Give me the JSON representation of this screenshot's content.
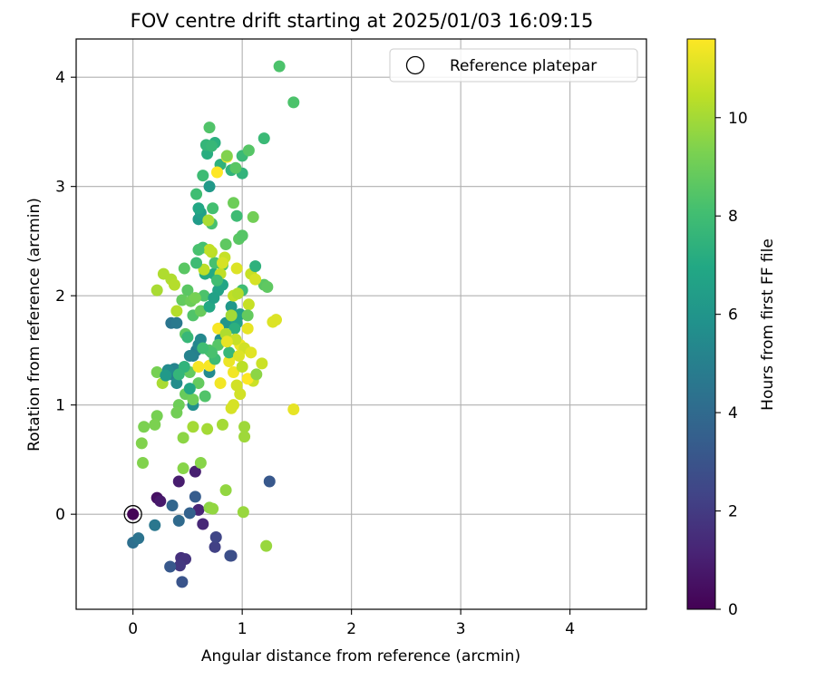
{
  "chart_data": {
    "type": "scatter",
    "title": "FOV centre drift starting at 2025/01/03 16:09:15",
    "xlabel": "Angular distance from reference (arcmin)",
    "ylabel": "Rotation from reference (arcmin)",
    "xlim": [
      -0.52,
      4.7
    ],
    "ylim": [
      -0.87,
      4.35
    ],
    "xticks": [
      0,
      1,
      2,
      3,
      4
    ],
    "yticks": [
      0,
      1,
      2,
      3,
      4
    ],
    "grid": true,
    "legend": {
      "label": "Reference platepar",
      "placement": "top-right"
    },
    "reference_point": {
      "x": 0,
      "y": 0
    },
    "colorbar": {
      "label": "Hours from first FF file",
      "colormap": "viridis",
      "range": [
        0,
        11.6
      ],
      "ticks": [
        0,
        2,
        4,
        6,
        8,
        10
      ]
    },
    "points": [
      {
        "x": 0.0,
        "y": 0.0,
        "c": 0.1
      },
      {
        "x": 0.22,
        "y": 0.15,
        "c": 0.5
      },
      {
        "x": 0.25,
        "y": 0.12,
        "c": 0.8
      },
      {
        "x": 0.42,
        "y": 0.3,
        "c": 0.9
      },
      {
        "x": 0.57,
        "y": 0.39,
        "c": 1.0
      },
      {
        "x": 0.6,
        "y": 0.04,
        "c": 1.2
      },
      {
        "x": 0.64,
        "y": -0.09,
        "c": 1.3
      },
      {
        "x": 0.44,
        "y": -0.4,
        "c": 1.6
      },
      {
        "x": 0.48,
        "y": -0.41,
        "c": 1.7
      },
      {
        "x": 0.43,
        "y": -0.47,
        "c": 1.9
      },
      {
        "x": 0.75,
        "y": -0.3,
        "c": 2.2
      },
      {
        "x": 0.76,
        "y": -0.21,
        "c": 2.4
      },
      {
        "x": 0.9,
        "y": -0.38,
        "c": 2.6
      },
      {
        "x": 0.89,
        "y": -0.38,
        "c": 2.8
      },
      {
        "x": 0.45,
        "y": -0.62,
        "c": 3.0
      },
      {
        "x": 0.34,
        "y": -0.48,
        "c": 3.2
      },
      {
        "x": 1.25,
        "y": 0.3,
        "c": 3.2
      },
      {
        "x": 0.57,
        "y": 0.16,
        "c": 3.4
      },
      {
        "x": 0.52,
        "y": 0.01,
        "c": 3.6
      },
      {
        "x": 0.36,
        "y": 0.08,
        "c": 3.8
      },
      {
        "x": 0.42,
        "y": -0.06,
        "c": 4.0
      },
      {
        "x": 0.0,
        "y": -0.26,
        "c": 4.2
      },
      {
        "x": 0.05,
        "y": -0.22,
        "c": 4.4
      },
      {
        "x": 0.2,
        "y": -0.1,
        "c": 4.6
      },
      {
        "x": 0.35,
        "y": 1.75,
        "c": 4.5
      },
      {
        "x": 0.4,
        "y": 1.75,
        "c": 4.7
      },
      {
        "x": 0.58,
        "y": 1.5,
        "c": 4.8
      },
      {
        "x": 0.55,
        "y": 1.45,
        "c": 5.0
      },
      {
        "x": 0.35,
        "y": 1.28,
        "c": 5.0
      },
      {
        "x": 0.38,
        "y": 1.33,
        "c": 5.2
      },
      {
        "x": 0.6,
        "y": 1.55,
        "c": 5.3
      },
      {
        "x": 0.62,
        "y": 1.6,
        "c": 5.4
      },
      {
        "x": 0.7,
        "y": 1.3,
        "c": 5.5
      },
      {
        "x": 0.4,
        "y": 1.2,
        "c": 5.6
      },
      {
        "x": 0.55,
        "y": 1.0,
        "c": 5.7
      },
      {
        "x": 0.8,
        "y": 1.6,
        "c": 5.8
      },
      {
        "x": 0.85,
        "y": 1.75,
        "c": 6.0
      },
      {
        "x": 0.9,
        "y": 1.9,
        "c": 6.1
      },
      {
        "x": 0.7,
        "y": 3.0,
        "c": 6.2
      },
      {
        "x": 0.6,
        "y": 2.7,
        "c": 6.3
      },
      {
        "x": 0.62,
        "y": 2.76,
        "c": 6.5
      },
      {
        "x": 0.98,
        "y": 1.83,
        "c": 6.5
      },
      {
        "x": 0.95,
        "y": 1.75,
        "c": 6.6
      },
      {
        "x": 0.78,
        "y": 2.05,
        "c": 6.7
      },
      {
        "x": 0.82,
        "y": 2.1,
        "c": 6.8
      },
      {
        "x": 0.6,
        "y": 2.8,
        "c": 6.9
      },
      {
        "x": 0.66,
        "y": 2.2,
        "c": 7.0
      },
      {
        "x": 0.74,
        "y": 2.2,
        "c": 7.0
      },
      {
        "x": 0.68,
        "y": 3.3,
        "c": 7.2
      },
      {
        "x": 0.75,
        "y": 3.4,
        "c": 7.3
      },
      {
        "x": 0.8,
        "y": 3.2,
        "c": 7.4
      },
      {
        "x": 0.9,
        "y": 3.15,
        "c": 7.5
      },
      {
        "x": 1.0,
        "y": 3.12,
        "c": 7.5
      },
      {
        "x": 0.67,
        "y": 3.38,
        "c": 7.6
      },
      {
        "x": 0.72,
        "y": 3.37,
        "c": 7.7
      },
      {
        "x": 1.2,
        "y": 3.44,
        "c": 7.8
      },
      {
        "x": 1.0,
        "y": 3.28,
        "c": 7.8
      },
      {
        "x": 0.64,
        "y": 3.1,
        "c": 7.9
      },
      {
        "x": 0.58,
        "y": 2.93,
        "c": 8.0
      },
      {
        "x": 0.73,
        "y": 2.8,
        "c": 8.1
      },
      {
        "x": 0.64,
        "y": 2.44,
        "c": 8.1
      },
      {
        "x": 0.72,
        "y": 2.66,
        "c": 8.2
      },
      {
        "x": 0.75,
        "y": 2.3,
        "c": 8.2
      },
      {
        "x": 0.82,
        "y": 2.28,
        "c": 8.3
      },
      {
        "x": 0.65,
        "y": 2.0,
        "c": 8.3
      },
      {
        "x": 0.55,
        "y": 1.82,
        "c": 8.4
      },
      {
        "x": 0.7,
        "y": 1.5,
        "c": 8.4
      },
      {
        "x": 0.78,
        "y": 1.55,
        "c": 8.5
      },
      {
        "x": 0.5,
        "y": 2.05,
        "c": 8.6
      },
      {
        "x": 0.47,
        "y": 2.25,
        "c": 8.6
      },
      {
        "x": 0.48,
        "y": 1.65,
        "c": 8.7
      },
      {
        "x": 0.52,
        "y": 1.3,
        "c": 8.8
      },
      {
        "x": 0.6,
        "y": 1.2,
        "c": 8.8
      },
      {
        "x": 0.48,
        "y": 1.1,
        "c": 8.9
      },
      {
        "x": 0.55,
        "y": 1.05,
        "c": 9.0
      },
      {
        "x": 0.42,
        "y": 1.0,
        "c": 9.0
      },
      {
        "x": 0.4,
        "y": 0.93,
        "c": 9.1
      },
      {
        "x": 0.22,
        "y": 0.9,
        "c": 9.2
      },
      {
        "x": 0.22,
        "y": 1.3,
        "c": 9.2
      },
      {
        "x": 0.2,
        "y": 0.82,
        "c": 9.3
      },
      {
        "x": 0.1,
        "y": 0.8,
        "c": 9.3
      },
      {
        "x": 0.08,
        "y": 0.65,
        "c": 9.4
      },
      {
        "x": 0.09,
        "y": 0.47,
        "c": 9.4
      },
      {
        "x": 0.62,
        "y": 0.47,
        "c": 9.5
      },
      {
        "x": 0.46,
        "y": 0.42,
        "c": 9.5
      },
      {
        "x": 0.46,
        "y": 0.7,
        "c": 9.6
      },
      {
        "x": 0.7,
        "y": 0.06,
        "c": 9.6
      },
      {
        "x": 0.73,
        "y": 0.05,
        "c": 9.7
      },
      {
        "x": 0.85,
        "y": 0.22,
        "c": 9.7
      },
      {
        "x": 1.01,
        "y": 0.02,
        "c": 9.8
      },
      {
        "x": 1.22,
        "y": -0.29,
        "c": 9.8
      },
      {
        "x": 1.02,
        "y": 0.8,
        "c": 9.9
      },
      {
        "x": 1.02,
        "y": 0.71,
        "c": 9.9
      },
      {
        "x": 0.82,
        "y": 0.82,
        "c": 10.0
      },
      {
        "x": 0.68,
        "y": 0.78,
        "c": 10.0
      },
      {
        "x": 0.55,
        "y": 0.8,
        "c": 10.0
      },
      {
        "x": 0.27,
        "y": 1.2,
        "c": 10.1
      },
      {
        "x": 0.22,
        "y": 2.05,
        "c": 10.1
      },
      {
        "x": 0.28,
        "y": 2.2,
        "c": 10.2
      },
      {
        "x": 0.35,
        "y": 2.15,
        "c": 10.2
      },
      {
        "x": 0.38,
        "y": 2.1,
        "c": 10.3
      },
      {
        "x": 0.4,
        "y": 1.86,
        "c": 10.3
      },
      {
        "x": 0.65,
        "y": 2.24,
        "c": 10.4
      },
      {
        "x": 0.72,
        "y": 2.4,
        "c": 10.4
      },
      {
        "x": 0.8,
        "y": 2.2,
        "c": 10.5
      },
      {
        "x": 0.92,
        "y": 2.0,
        "c": 10.5
      },
      {
        "x": 1.08,
        "y": 2.2,
        "c": 10.6
      },
      {
        "x": 1.06,
        "y": 1.92,
        "c": 10.6
      },
      {
        "x": 1.18,
        "y": 1.38,
        "c": 10.7
      },
      {
        "x": 1.1,
        "y": 1.22,
        "c": 10.7
      },
      {
        "x": 0.98,
        "y": 1.1,
        "c": 10.8
      },
      {
        "x": 0.95,
        "y": 1.18,
        "c": 10.8
      },
      {
        "x": 0.92,
        "y": 1.0,
        "c": 10.9
      },
      {
        "x": 0.9,
        "y": 0.97,
        "c": 10.9
      },
      {
        "x": 1.28,
        "y": 1.76,
        "c": 11.0
      },
      {
        "x": 1.31,
        "y": 1.78,
        "c": 11.0
      },
      {
        "x": 1.47,
        "y": 0.96,
        "c": 11.2
      },
      {
        "x": 1.05,
        "y": 1.7,
        "c": 11.2
      },
      {
        "x": 0.98,
        "y": 1.55,
        "c": 11.3
      },
      {
        "x": 0.88,
        "y": 1.4,
        "c": 11.3
      },
      {
        "x": 0.92,
        "y": 1.3,
        "c": 11.4
      },
      {
        "x": 0.8,
        "y": 1.2,
        "c": 11.4
      },
      {
        "x": 0.6,
        "y": 1.35,
        "c": 11.5
      },
      {
        "x": 0.7,
        "y": 1.36,
        "c": 11.5
      },
      {
        "x": 0.78,
        "y": 1.7,
        "c": 11.5
      },
      {
        "x": 0.86,
        "y": 3.27,
        "c": 11.6
      },
      {
        "x": 0.77,
        "y": 3.13,
        "c": 11.6
      },
      {
        "x": 1.05,
        "y": 1.24,
        "c": 11.6
      },
      {
        "x": 1.34,
        "y": 4.1,
        "c": 8.3
      },
      {
        "x": 1.47,
        "y": 3.77,
        "c": 8.3
      },
      {
        "x": 0.7,
        "y": 3.54,
        "c": 8.4
      },
      {
        "x": 1.06,
        "y": 3.33,
        "c": 8.5
      },
      {
        "x": 0.95,
        "y": 2.73,
        "c": 7.9
      },
      {
        "x": 0.97,
        "y": 2.52,
        "c": 8.6
      },
      {
        "x": 1.0,
        "y": 2.55,
        "c": 8.5
      },
      {
        "x": 0.85,
        "y": 2.47,
        "c": 8.7
      },
      {
        "x": 1.1,
        "y": 2.72,
        "c": 9.1
      },
      {
        "x": 0.92,
        "y": 2.85,
        "c": 9.0
      },
      {
        "x": 1.2,
        "y": 2.1,
        "c": 8.6
      },
      {
        "x": 1.23,
        "y": 2.08,
        "c": 8.7
      },
      {
        "x": 1.12,
        "y": 2.27,
        "c": 7.4
      },
      {
        "x": 1.0,
        "y": 2.05,
        "c": 7.9
      },
      {
        "x": 1.05,
        "y": 1.82,
        "c": 8.8
      },
      {
        "x": 0.93,
        "y": 1.7,
        "c": 7.3
      },
      {
        "x": 0.88,
        "y": 1.48,
        "c": 7.7
      },
      {
        "x": 0.75,
        "y": 1.42,
        "c": 7.9
      },
      {
        "x": 0.72,
        "y": 1.48,
        "c": 8.2
      },
      {
        "x": 0.64,
        "y": 1.52,
        "c": 8.0
      },
      {
        "x": 0.52,
        "y": 1.45,
        "c": 5.1
      },
      {
        "x": 0.47,
        "y": 1.35,
        "c": 7.5
      },
      {
        "x": 0.42,
        "y": 1.28,
        "c": 7.6
      },
      {
        "x": 0.32,
        "y": 1.32,
        "c": 5.5
      },
      {
        "x": 0.3,
        "y": 1.27,
        "c": 6.2
      },
      {
        "x": 0.52,
        "y": 1.15,
        "c": 6.8
      },
      {
        "x": 0.66,
        "y": 1.08,
        "c": 8.4
      },
      {
        "x": 0.5,
        "y": 1.62,
        "c": 7.7
      },
      {
        "x": 0.45,
        "y": 1.96,
        "c": 8.8
      },
      {
        "x": 0.53,
        "y": 1.95,
        "c": 9.0
      },
      {
        "x": 0.57,
        "y": 1.98,
        "c": 9.2
      },
      {
        "x": 0.62,
        "y": 1.86,
        "c": 8.9
      },
      {
        "x": 0.7,
        "y": 1.9,
        "c": 6.9
      },
      {
        "x": 0.74,
        "y": 1.98,
        "c": 6.6
      },
      {
        "x": 0.77,
        "y": 2.14,
        "c": 8.0
      },
      {
        "x": 0.84,
        "y": 2.35,
        "c": 10.6
      },
      {
        "x": 0.82,
        "y": 2.3,
        "c": 10.9
      },
      {
        "x": 0.95,
        "y": 2.25,
        "c": 11.0
      },
      {
        "x": 1.12,
        "y": 2.15,
        "c": 10.9
      },
      {
        "x": 0.96,
        "y": 2.02,
        "c": 10.3
      },
      {
        "x": 0.9,
        "y": 1.82,
        "c": 10.0
      },
      {
        "x": 0.85,
        "y": 1.65,
        "c": 10.2
      },
      {
        "x": 0.94,
        "y": 1.6,
        "c": 10.6
      },
      {
        "x": 1.02,
        "y": 1.52,
        "c": 10.8
      },
      {
        "x": 1.08,
        "y": 1.48,
        "c": 11.1
      },
      {
        "x": 0.97,
        "y": 1.45,
        "c": 11.0
      },
      {
        "x": 0.86,
        "y": 1.58,
        "c": 11.2
      },
      {
        "x": 1.0,
        "y": 1.35,
        "c": 10.4
      },
      {
        "x": 1.13,
        "y": 1.28,
        "c": 9.6
      },
      {
        "x": 0.69,
        "y": 2.69,
        "c": 10.1
      },
      {
        "x": 0.7,
        "y": 2.42,
        "c": 10.5
      },
      {
        "x": 0.86,
        "y": 3.28,
        "c": 9.4
      },
      {
        "x": 0.94,
        "y": 3.17,
        "c": 8.6
      },
      {
        "x": 0.6,
        "y": 2.42,
        "c": 8.2
      },
      {
        "x": 0.58,
        "y": 2.3,
        "c": 7.9
      }
    ]
  }
}
